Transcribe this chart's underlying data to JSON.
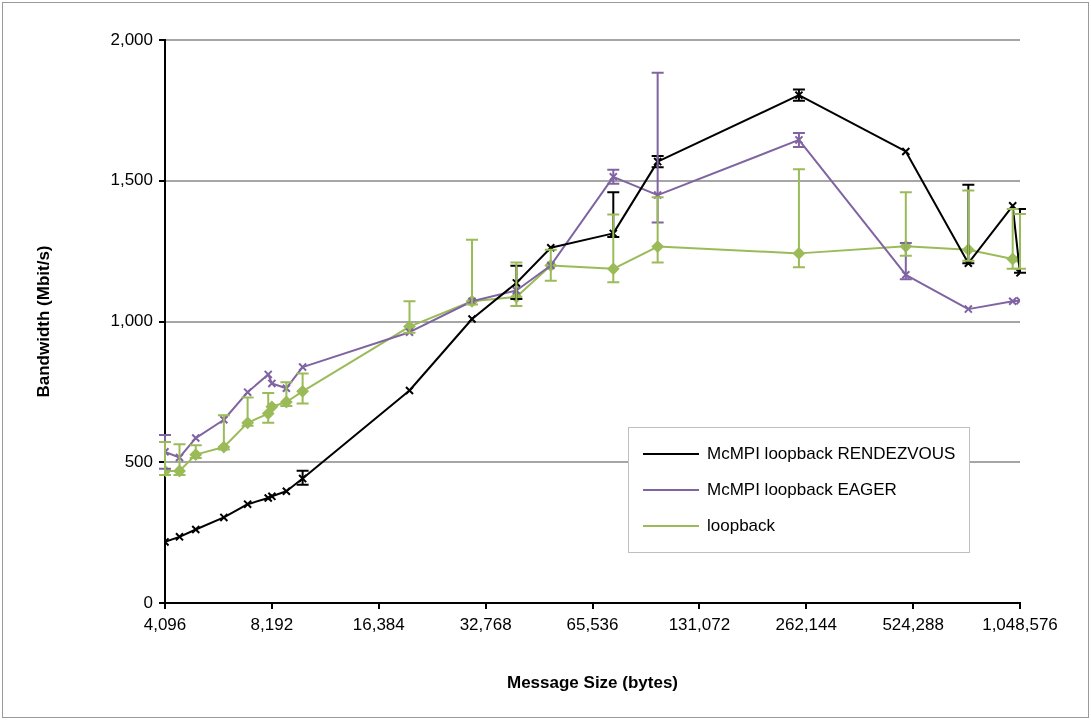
{
  "chart_data": {
    "type": "line",
    "xlabel": "Message Size (bytes)",
    "ylabel": "Bandwidth (Mbit/s)",
    "x": [
      4096,
      4500,
      5000,
      6000,
      7000,
      8000,
      8192,
      9000,
      10000,
      20000,
      30000,
      40000,
      50000,
      75000,
      100000,
      250000,
      500000,
      750000,
      1000000,
      1048576
    ],
    "log": "x",
    "xlim": [
      4096,
      1048576
    ],
    "xticks": [
      {
        "value": 4096,
        "label": "4,096"
      },
      {
        "value": 8192,
        "label": "8,192"
      },
      {
        "value": 16384,
        "label": "16,384"
      },
      {
        "value": 32768,
        "label": "32,768"
      },
      {
        "value": 65536,
        "label": "65,536"
      },
      {
        "value": 131072,
        "label": "131,072"
      },
      {
        "value": 262144,
        "label": "262,144"
      },
      {
        "value": 524288,
        "label": "524,288"
      },
      {
        "value": 1048576,
        "label": "1,048,576"
      }
    ],
    "ylim": [
      0,
      2000
    ],
    "yticks": [
      0,
      500,
      {
        "value": 1000,
        "label": "1,000"
      },
      {
        "value": 1500,
        "label": "1,500"
      },
      {
        "value": 2000,
        "label": "2,000"
      }
    ],
    "grid": "y",
    "legend": "bottom right",
    "series": [
      {
        "name": "McMPI loopback RENDEZVOUS",
        "color": "#000000",
        "marker": "cross",
        "values": [
          217,
          235,
          261,
          304,
          351,
          373,
          379,
          397,
          442,
          755,
          1009,
          1137,
          1262,
          1313,
          1568,
          1804,
          1604,
          1207,
          1411,
          1173
        ],
        "errors": [
          null,
          null,
          null,
          null,
          null,
          null,
          null,
          null,
          [
            420,
            470
          ],
          null,
          null,
          [
            1080,
            1198
          ],
          null,
          [
            1300,
            1459
          ],
          20,
          20,
          null,
          [
            1207,
            1486
          ],
          null,
          [
            1173,
            1400
          ]
        ]
      },
      {
        "name": "McMPI loopback EAGER",
        "color": "#8064a2",
        "marker": "cross",
        "values": [
          537,
          517,
          586,
          651,
          749,
          812,
          780,
          763,
          838,
          962,
          1072,
          1110,
          1199,
          1514,
          1449,
          1645,
          1166,
          1044,
          1072,
          1074
        ],
        "errors": [
          60,
          null,
          null,
          null,
          null,
          null,
          null,
          null,
          null,
          null,
          null,
          null,
          null,
          25,
          [
            1352,
            1884
          ],
          25,
          [
            1150,
            1279
          ],
          null,
          null,
          null
        ]
      },
      {
        "name": "loopback",
        "color": "#9bbb59",
        "marker": "diamond",
        "values": [
          469,
          469,
          527,
          554,
          640,
          673,
          697,
          714,
          752,
          982,
          1072,
          1087,
          1199,
          1187,
          1266,
          1242,
          1267,
          1255,
          1222,
          1222
        ],
        "errors": [
          [
            455,
            572
          ],
          [
            455,
            564
          ],
          [
            515,
            560
          ],
          [
            545,
            667
          ],
          [
            630,
            730
          ],
          [
            640,
            746
          ],
          null,
          [
            700,
            784
          ],
          [
            709,
            815
          ],
          [
            960,
            1072
          ],
          [
            1060,
            1290
          ],
          [
            1055,
            1210
          ],
          [
            1145,
            1255
          ],
          [
            1139,
            1380
          ],
          [
            1210,
            1441
          ],
          [
            1193,
            1541
          ],
          [
            1234,
            1459
          ],
          [
            1216,
            1465
          ],
          [
            1187,
            1400
          ],
          [
            1187,
            1382
          ]
        ]
      }
    ]
  }
}
